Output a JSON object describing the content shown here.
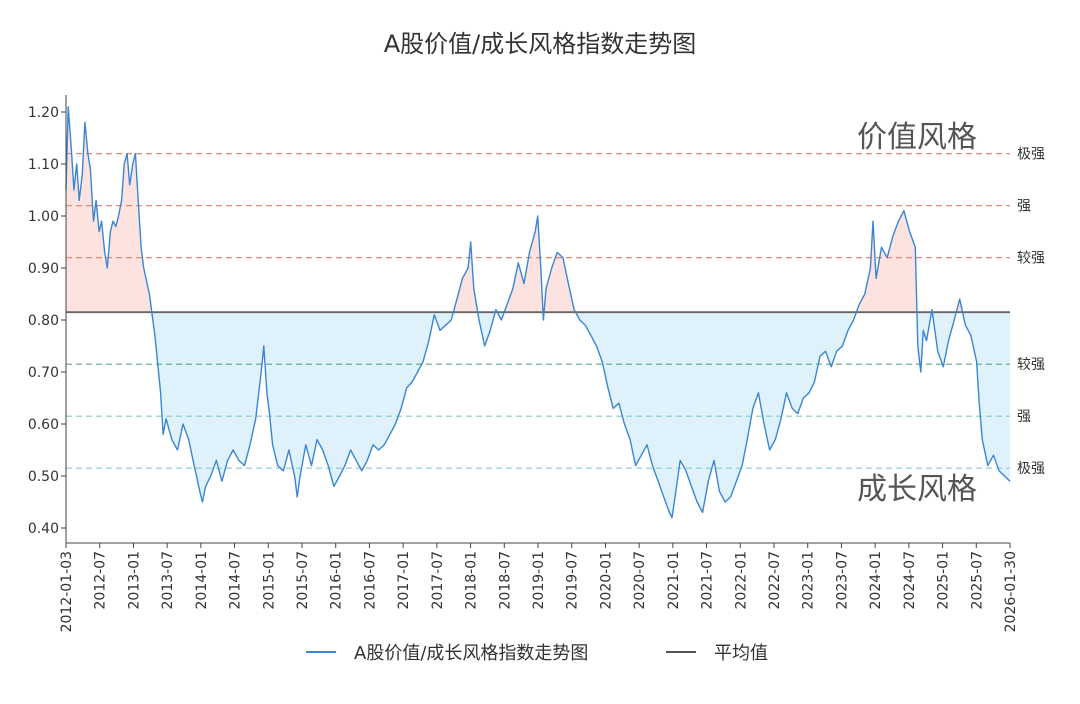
{
  "chart_data": {
    "type": "line",
    "title": "A股价值/成长风格指数走势图",
    "xlabel": "",
    "ylabel": "",
    "ylim": [
      0.38,
      1.23
    ],
    "y_ticks": [
      "0.40",
      "0.50",
      "0.60",
      "0.70",
      "0.80",
      "0.90",
      "1.00",
      "1.10",
      "1.20"
    ],
    "x_range": [
      "2012-01-03",
      "2026-01-30"
    ],
    "x_ticks": [
      "2012-01-03",
      "2012-07",
      "2013-01",
      "2013-07",
      "2014-01",
      "2014-07",
      "2015-01",
      "2015-07",
      "2016-01",
      "2016-07",
      "2017-01",
      "2017-07",
      "2018-01",
      "2018-07",
      "2019-01",
      "2019-07",
      "2020-01",
      "2020-07",
      "2021-01",
      "2021-07",
      "2022-01",
      "2022-07",
      "2023-01",
      "2023-07",
      "2024-01",
      "2024-07",
      "2025-01",
      "2025-07",
      "2026-01-30"
    ],
    "grid": false,
    "legend_position": "bottom",
    "series": [
      {
        "name": "A股价值/成长风格指数走势图",
        "color": "#3a86d4",
        "points": [
          [
            "2012-01-03",
            1.05
          ],
          [
            "2012-01-15",
            1.21
          ],
          [
            "2012-02-01",
            1.13
          ],
          [
            "2012-02-15",
            1.05
          ],
          [
            "2012-03-01",
            1.1
          ],
          [
            "2012-03-15",
            1.03
          ],
          [
            "2012-04-01",
            1.08
          ],
          [
            "2012-04-15",
            1.18
          ],
          [
            "2012-05-01",
            1.12
          ],
          [
            "2012-05-15",
            1.09
          ],
          [
            "2012-06-01",
            0.99
          ],
          [
            "2012-06-15",
            1.03
          ],
          [
            "2012-07-01",
            0.97
          ],
          [
            "2012-07-15",
            0.99
          ],
          [
            "2012-08-01",
            0.93
          ],
          [
            "2012-08-15",
            0.9
          ],
          [
            "2012-09-01",
            0.97
          ],
          [
            "2012-09-15",
            0.99
          ],
          [
            "2012-10-01",
            0.98
          ],
          [
            "2012-10-15",
            1.0
          ],
          [
            "2012-11-01",
            1.03
          ],
          [
            "2012-11-15",
            1.1
          ],
          [
            "2012-12-01",
            1.12
          ],
          [
            "2012-12-15",
            1.06
          ],
          [
            "2013-01-01",
            1.1
          ],
          [
            "2013-01-15",
            1.12
          ],
          [
            "2013-02-01",
            1.02
          ],
          [
            "2013-02-15",
            0.94
          ],
          [
            "2013-03-01",
            0.9
          ],
          [
            "2013-04-01",
            0.85
          ],
          [
            "2013-05-01",
            0.77
          ],
          [
            "2013-06-01",
            0.66
          ],
          [
            "2013-06-15",
            0.58
          ],
          [
            "2013-07-01",
            0.61
          ],
          [
            "2013-08-01",
            0.57
          ],
          [
            "2013-09-01",
            0.55
          ],
          [
            "2013-10-01",
            0.6
          ],
          [
            "2013-11-01",
            0.57
          ],
          [
            "2013-12-01",
            0.52
          ],
          [
            "2014-01-01",
            0.47
          ],
          [
            "2014-01-15",
            0.45
          ],
          [
            "2014-02-01",
            0.48
          ],
          [
            "2014-03-01",
            0.5
          ],
          [
            "2014-04-01",
            0.53
          ],
          [
            "2014-05-01",
            0.49
          ],
          [
            "2014-06-01",
            0.53
          ],
          [
            "2014-07-01",
            0.55
          ],
          [
            "2014-08-01",
            0.53
          ],
          [
            "2014-09-01",
            0.52
          ],
          [
            "2014-10-01",
            0.56
          ],
          [
            "2014-11-01",
            0.61
          ],
          [
            "2014-12-01",
            0.7
          ],
          [
            "2014-12-15",
            0.75
          ],
          [
            "2015-01-01",
            0.66
          ],
          [
            "2015-01-15",
            0.62
          ],
          [
            "2015-02-01",
            0.56
          ],
          [
            "2015-03-01",
            0.52
          ],
          [
            "2015-04-01",
            0.51
          ],
          [
            "2015-05-01",
            0.55
          ],
          [
            "2015-06-01",
            0.5
          ],
          [
            "2015-06-15",
            0.46
          ],
          [
            "2015-07-01",
            0.5
          ],
          [
            "2015-08-01",
            0.56
          ],
          [
            "2015-09-01",
            0.52
          ],
          [
            "2015-10-01",
            0.57
          ],
          [
            "2015-11-01",
            0.55
          ],
          [
            "2015-12-01",
            0.52
          ],
          [
            "2016-01-01",
            0.48
          ],
          [
            "2016-02-01",
            0.5
          ],
          [
            "2016-03-01",
            0.52
          ],
          [
            "2016-04-01",
            0.55
          ],
          [
            "2016-05-01",
            0.53
          ],
          [
            "2016-06-01",
            0.51
          ],
          [
            "2016-07-01",
            0.53
          ],
          [
            "2016-08-01",
            0.56
          ],
          [
            "2016-09-01",
            0.55
          ],
          [
            "2016-10-01",
            0.56
          ],
          [
            "2016-11-01",
            0.58
          ],
          [
            "2016-12-01",
            0.6
          ],
          [
            "2017-01-01",
            0.63
          ],
          [
            "2017-02-01",
            0.67
          ],
          [
            "2017-03-01",
            0.68
          ],
          [
            "2017-04-01",
            0.7
          ],
          [
            "2017-05-01",
            0.72
          ],
          [
            "2017-06-01",
            0.76
          ],
          [
            "2017-07-01",
            0.81
          ],
          [
            "2017-08-01",
            0.78
          ],
          [
            "2017-09-01",
            0.79
          ],
          [
            "2017-10-01",
            0.8
          ],
          [
            "2017-11-01",
            0.84
          ],
          [
            "2017-12-01",
            0.88
          ],
          [
            "2018-01-01",
            0.9
          ],
          [
            "2018-01-15",
            0.95
          ],
          [
            "2018-02-01",
            0.86
          ],
          [
            "2018-03-01",
            0.8
          ],
          [
            "2018-04-01",
            0.75
          ],
          [
            "2018-05-01",
            0.78
          ],
          [
            "2018-06-01",
            0.82
          ],
          [
            "2018-07-01",
            0.8
          ],
          [
            "2018-08-01",
            0.83
          ],
          [
            "2018-09-01",
            0.86
          ],
          [
            "2018-10-01",
            0.91
          ],
          [
            "2018-11-01",
            0.87
          ],
          [
            "2018-12-01",
            0.93
          ],
          [
            "2019-01-01",
            0.97
          ],
          [
            "2019-01-15",
            1.0
          ],
          [
            "2019-02-01",
            0.9
          ],
          [
            "2019-02-15",
            0.8
          ],
          [
            "2019-03-01",
            0.86
          ],
          [
            "2019-04-01",
            0.9
          ],
          [
            "2019-05-01",
            0.93
          ],
          [
            "2019-06-01",
            0.92
          ],
          [
            "2019-07-01",
            0.87
          ],
          [
            "2019-08-01",
            0.82
          ],
          [
            "2019-09-01",
            0.8
          ],
          [
            "2019-10-01",
            0.79
          ],
          [
            "2019-11-01",
            0.77
          ],
          [
            "2019-12-01",
            0.75
          ],
          [
            "2020-01-01",
            0.72
          ],
          [
            "2020-02-01",
            0.67
          ],
          [
            "2020-03-01",
            0.63
          ],
          [
            "2020-04-01",
            0.64
          ],
          [
            "2020-05-01",
            0.6
          ],
          [
            "2020-06-01",
            0.57
          ],
          [
            "2020-07-01",
            0.52
          ],
          [
            "2020-08-01",
            0.54
          ],
          [
            "2020-09-01",
            0.56
          ],
          [
            "2020-10-01",
            0.52
          ],
          [
            "2020-11-01",
            0.49
          ],
          [
            "2020-12-01",
            0.46
          ],
          [
            "2021-01-01",
            0.43
          ],
          [
            "2021-01-15",
            0.42
          ],
          [
            "2021-02-01",
            0.46
          ],
          [
            "2021-03-01",
            0.53
          ],
          [
            "2021-04-01",
            0.51
          ],
          [
            "2021-05-01",
            0.48
          ],
          [
            "2021-06-01",
            0.45
          ],
          [
            "2021-07-01",
            0.43
          ],
          [
            "2021-08-01",
            0.49
          ],
          [
            "2021-09-01",
            0.53
          ],
          [
            "2021-10-01",
            0.47
          ],
          [
            "2021-11-01",
            0.45
          ],
          [
            "2021-12-01",
            0.46
          ],
          [
            "2022-01-01",
            0.49
          ],
          [
            "2022-02-01",
            0.52
          ],
          [
            "2022-03-01",
            0.57
          ],
          [
            "2022-04-01",
            0.63
          ],
          [
            "2022-05-01",
            0.66
          ],
          [
            "2022-06-01",
            0.6
          ],
          [
            "2022-07-01",
            0.55
          ],
          [
            "2022-08-01",
            0.57
          ],
          [
            "2022-09-01",
            0.61
          ],
          [
            "2022-10-01",
            0.66
          ],
          [
            "2022-11-01",
            0.63
          ],
          [
            "2022-12-01",
            0.62
          ],
          [
            "2023-01-01",
            0.65
          ],
          [
            "2023-02-01",
            0.66
          ],
          [
            "2023-03-01",
            0.68
          ],
          [
            "2023-04-01",
            0.73
          ],
          [
            "2023-05-01",
            0.74
          ],
          [
            "2023-06-01",
            0.71
          ],
          [
            "2023-07-01",
            0.74
          ],
          [
            "2023-08-01",
            0.75
          ],
          [
            "2023-09-01",
            0.78
          ],
          [
            "2023-10-01",
            0.8
          ],
          [
            "2023-11-01",
            0.83
          ],
          [
            "2023-12-01",
            0.85
          ],
          [
            "2024-01-01",
            0.9
          ],
          [
            "2024-01-15",
            0.99
          ],
          [
            "2024-02-01",
            0.88
          ],
          [
            "2024-03-01",
            0.94
          ],
          [
            "2024-04-01",
            0.92
          ],
          [
            "2024-05-01",
            0.96
          ],
          [
            "2024-06-01",
            0.99
          ],
          [
            "2024-07-01",
            1.01
          ],
          [
            "2024-08-01",
            0.97
          ],
          [
            "2024-09-01",
            0.94
          ],
          [
            "2024-09-15",
            0.75
          ],
          [
            "2024-10-01",
            0.7
          ],
          [
            "2024-10-15",
            0.78
          ],
          [
            "2024-11-01",
            0.76
          ],
          [
            "2024-12-01",
            0.82
          ],
          [
            "2025-01-01",
            0.74
          ],
          [
            "2025-02-01",
            0.71
          ],
          [
            "2025-03-01",
            0.76
          ],
          [
            "2025-04-01",
            0.8
          ],
          [
            "2025-05-01",
            0.84
          ],
          [
            "2025-06-01",
            0.79
          ],
          [
            "2025-07-01",
            0.77
          ],
          [
            "2025-08-01",
            0.72
          ],
          [
            "2025-08-15",
            0.64
          ],
          [
            "2025-09-01",
            0.57
          ],
          [
            "2025-10-01",
            0.52
          ],
          [
            "2025-11-01",
            0.54
          ],
          [
            "2025-12-01",
            0.51
          ],
          [
            "2026-01-30",
            0.49
          ]
        ]
      },
      {
        "name": "平均值",
        "color": "#666666",
        "value": 0.815
      }
    ],
    "reference_lines": [
      {
        "value": 1.12,
        "label": "极强",
        "color": "#e08a7a"
      },
      {
        "value": 1.02,
        "label": "强",
        "color": "#e08a7a"
      },
      {
        "value": 0.92,
        "label": "较强",
        "color": "#e08a7a"
      },
      {
        "value": 0.715,
        "label": "较强",
        "color": "#5aa98a"
      },
      {
        "value": 0.615,
        "label": "强",
        "color": "#88c9c9"
      },
      {
        "value": 0.515,
        "label": "极强",
        "color": "#88c9d9"
      }
    ],
    "annotations": [
      {
        "text": "价值风格",
        "anchor": "upper-right"
      },
      {
        "text": "成长风格",
        "anchor": "lower-right"
      }
    ],
    "fill_colors": {
      "above_mean": "#fde3df",
      "below_mean": "#dff1fa"
    }
  }
}
